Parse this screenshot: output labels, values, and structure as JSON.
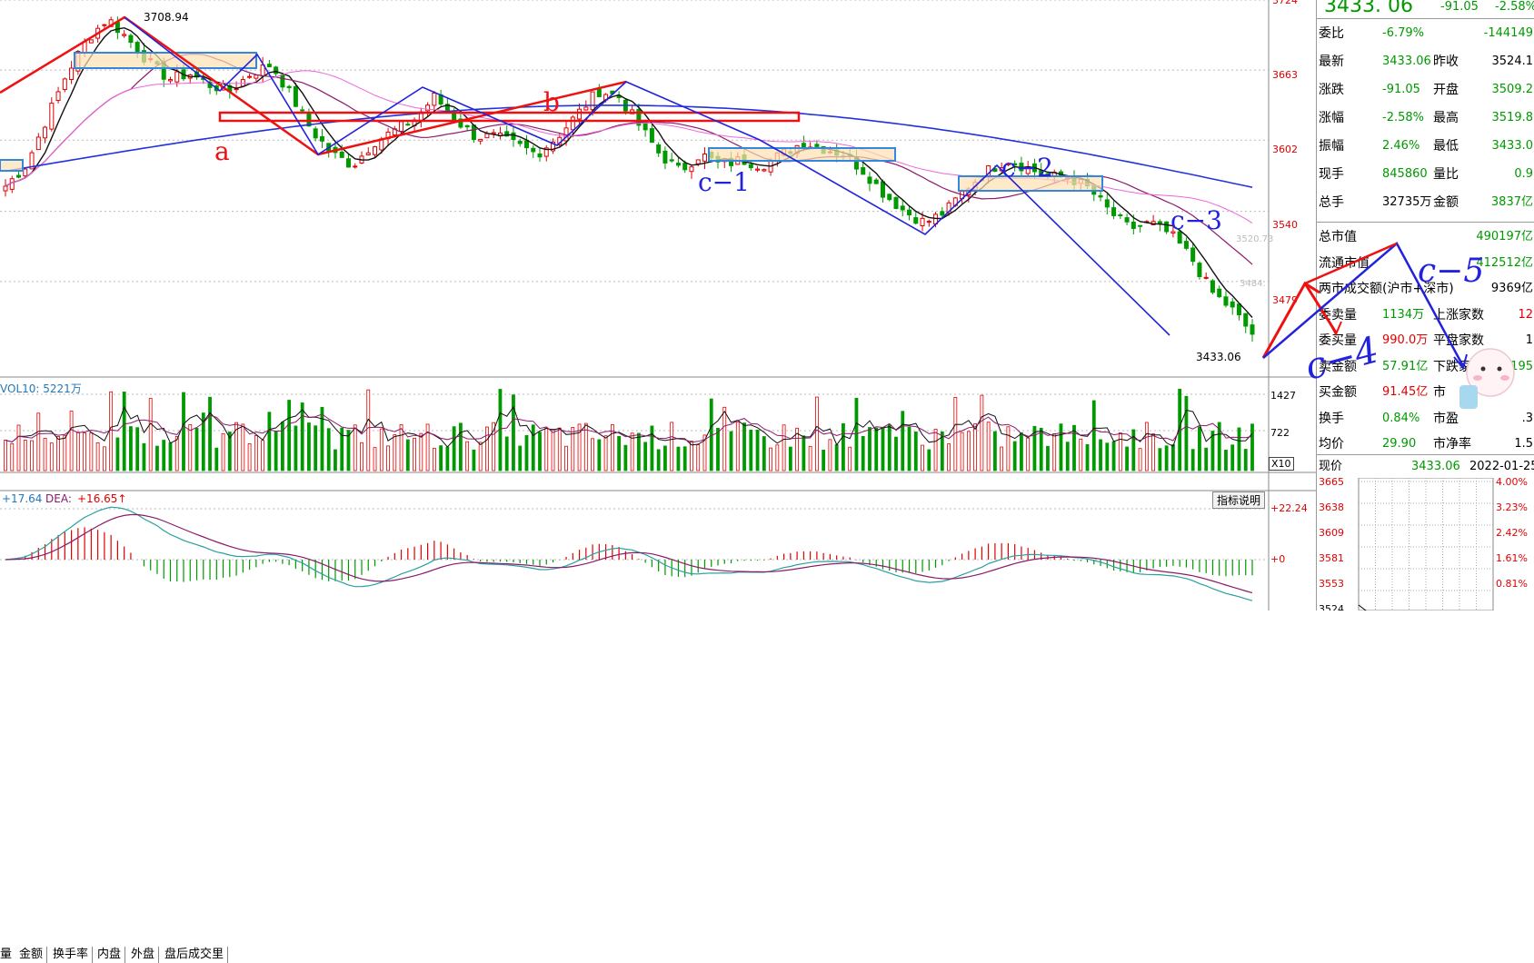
{
  "price_axis_ticks": [
    "3724",
    "3663",
    "3602",
    "3540",
    "3479"
  ],
  "price_labels": {
    "high": "3708.94",
    "low": "3433.06",
    "faint1": "3520.73",
    "faint2": "3484."
  },
  "annotations": {
    "a": "a",
    "b": "b",
    "c1": "c−1",
    "c2": "c−2",
    "c3": "c−3"
  },
  "volume": {
    "label": "VOL10: 5221万",
    "ticks": [
      "1427",
      "722"
    ],
    "x10": "X10"
  },
  "tabs": [
    "量",
    "金额",
    "换手率",
    "内盘",
    "外盘",
    "盘后成交里"
  ],
  "macd": {
    "dif": "+17.64",
    "dea_label": "DEA:",
    "dea": "+16.65↑",
    "ticks": [
      "+22.24",
      "+0"
    ],
    "indicator_btn": "指标说明"
  },
  "quote": {
    "price": "3433. 06",
    "change": "-91.05",
    "change_pct": "-2.58%",
    "rows": [
      {
        "l1": "委比",
        "v1": "-6.79%",
        "v1c": "green",
        "l2": "",
        "v2": "-144149",
        "v2c": "green"
      },
      {
        "l1": "最新",
        "v1": "3433.06",
        "v1c": "green",
        "l2": "昨收",
        "v2": "3524.1",
        "v2c": "blk"
      },
      {
        "l1": "涨跌",
        "v1": "-91.05",
        "v1c": "green",
        "l2": "开盘",
        "v2": "3509.2",
        "v2c": "green"
      },
      {
        "l1": "涨幅",
        "v1": "-2.58%",
        "v1c": "green",
        "l2": "最高",
        "v2": "3519.8",
        "v2c": "green"
      },
      {
        "l1": "振幅",
        "v1": "2.46%",
        "v1c": "green",
        "l2": "最低",
        "v2": "3433.0",
        "v2c": "green"
      },
      {
        "l1": "现手",
        "v1": "845860",
        "v1c": "green",
        "l2": "量比",
        "v2": "0.9",
        "v2c": "green"
      },
      {
        "l1": "总手",
        "v1": "32735万",
        "v1c": "blk",
        "l2": "金额",
        "v2": "3837亿",
        "v2c": "green"
      }
    ],
    "rows2": [
      {
        "l1": "总市值",
        "v1": "",
        "v1c": "blk",
        "l2": "",
        "v2": "490197亿",
        "v2c": "green"
      },
      {
        "l1": "流通市值",
        "v1": "",
        "v1c": "blk",
        "l2": "",
        "v2": "412512亿",
        "v2c": "green"
      },
      {
        "l1": "两市成交额(沪市+深市)",
        "v1": "",
        "v1c": "blk",
        "l2": "",
        "v2": "9369亿",
        "v2c": "blk"
      },
      {
        "l1": "委卖量",
        "v1": "1134万",
        "v1c": "green",
        "l2": "上涨家数",
        "v2": "12",
        "v2c": "red"
      },
      {
        "l1": "委买量",
        "v1": "990.0万",
        "v1c": "red",
        "l2": "平盘家数",
        "v2": "1",
        "v2c": "blk"
      },
      {
        "l1": "卖金额",
        "v1": "57.91亿",
        "v1c": "green",
        "l2": "下跌家数",
        "v2": "195",
        "v2c": "green"
      },
      {
        "l1": "买金额",
        "v1": "91.45亿",
        "v1c": "red",
        "l2": "市",
        "v2": "",
        "v2c": "blk"
      },
      {
        "l1": "换手",
        "v1": "0.84%",
        "v1c": "green",
        "l2": "市盈",
        "v2": ".3",
        "v2c": "blk"
      },
      {
        "l1": "均价",
        "v1": "29.90",
        "v1c": "green",
        "l2": "市净率",
        "v2": "1.5",
        "v2c": "blk"
      }
    ],
    "now_label": "现价",
    "now_value": "3433.06",
    "date": "2022-01-25,"
  },
  "mini_chart": {
    "left_ticks": [
      "3665",
      "3638",
      "3609",
      "3581",
      "3553",
      "3524"
    ],
    "right_ticks": [
      "4.00%",
      "3.23%",
      "2.42%",
      "1.61%",
      "0.81%",
      ""
    ]
  },
  "handwriting": {
    "c4": "c−4",
    "c5": "c−5"
  },
  "colors": {
    "up": "#e00000",
    "down": "#009900",
    "ma_long": "#2233dd",
    "ma_mid": "#8b1a6b",
    "ma_pink": "#ee66dd",
    "box_fill": "#fde0b0",
    "box_stroke": "#3388dd",
    "wave_red": "#ee1111",
    "wave_blue": "#2222dd"
  },
  "chart_data": {
    "type": "candlestick",
    "ylim": [
      3433,
      3724
    ],
    "high": 3708.94,
    "low": 3433.06,
    "price_path": [
      3562,
      3580,
      3620,
      3660,
      3690,
      3708,
      3690,
      3670,
      3655,
      3660,
      3650,
      3645,
      3660,
      3668,
      3640,
      3610,
      3590,
      3580,
      3600,
      3610,
      3620,
      3640,
      3620,
      3605,
      3605,
      3598,
      3590,
      3605,
      3625,
      3645,
      3640,
      3615,
      3590,
      3575,
      3590,
      3580,
      3585,
      3580,
      3590,
      3600,
      3595,
      3590,
      3575,
      3555,
      3540,
      3530,
      3540,
      3560,
      3575,
      3585,
      3578,
      3570,
      3570,
      3560,
      3540,
      3525,
      3530,
      3520,
      3500,
      3470,
      3455,
      3433
    ],
    "volume_unit": "万",
    "vol10": 5221
  }
}
